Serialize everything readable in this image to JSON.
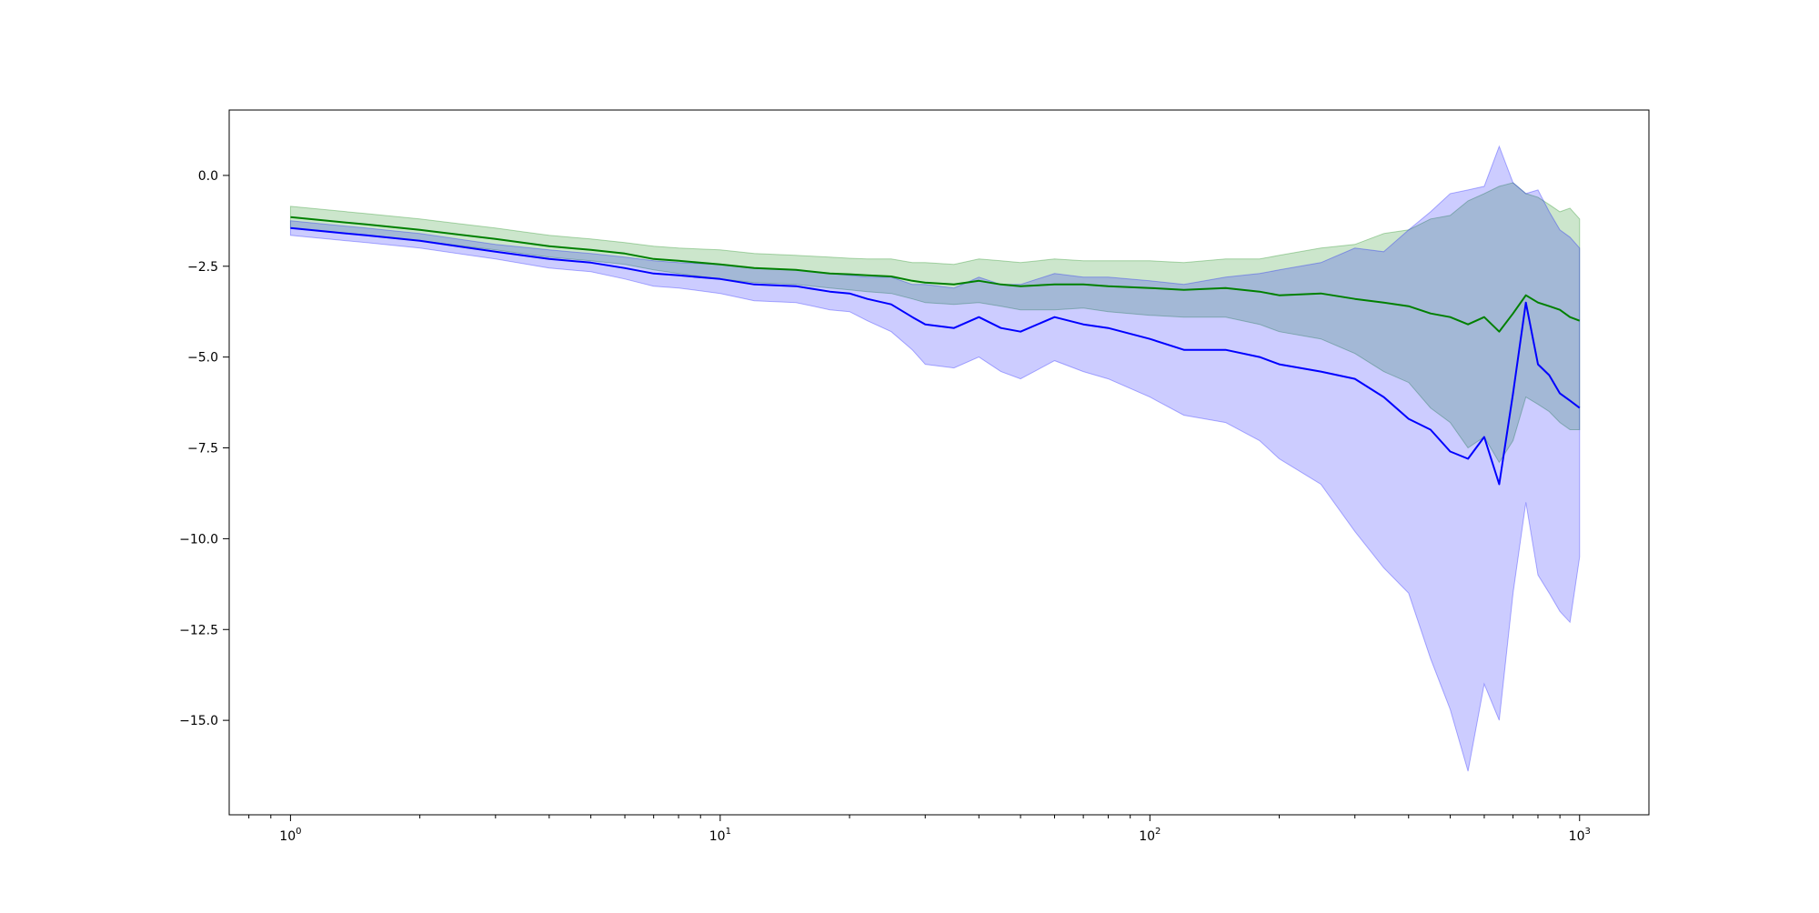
{
  "chart_data": {
    "type": "area",
    "title": "",
    "xlabel": "",
    "ylabel": "",
    "x_scale": "log",
    "xlim": [
      0.72,
      1450
    ],
    "ylim": [
      -17.6,
      1.8
    ],
    "x_ticks": [
      {
        "value": 1,
        "base": "10",
        "exp": "0"
      },
      {
        "value": 10,
        "base": "10",
        "exp": "1"
      },
      {
        "value": 100,
        "base": "10",
        "exp": "2"
      },
      {
        "value": 1000,
        "base": "10",
        "exp": "3"
      }
    ],
    "y_ticks": [
      {
        "value": 0,
        "label": "0.0"
      },
      {
        "value": -2.5,
        "label": "−2.5"
      },
      {
        "value": -5,
        "label": "−5.0"
      },
      {
        "value": -7.5,
        "label": "−7.5"
      },
      {
        "value": -10,
        "label": "−10.0"
      },
      {
        "value": -12.5,
        "label": "−12.5"
      },
      {
        "value": -15,
        "label": "−15.0"
      }
    ],
    "grid": false,
    "legend": "none",
    "series": [
      {
        "color": "#008000",
        "band_color": "#008000",
        "x": [
          1,
          1.5,
          2,
          3,
          4,
          5,
          6,
          7,
          8,
          10,
          12,
          15,
          18,
          20,
          22,
          25,
          28,
          30,
          35,
          40,
          45,
          50,
          60,
          70,
          80,
          100,
          120,
          150,
          180,
          200,
          250,
          300,
          350,
          400,
          450,
          500,
          550,
          600,
          650,
          700,
          750,
          800,
          850,
          900,
          950,
          1000
        ],
        "mean": [
          -1.15,
          -1.35,
          -1.5,
          -1.75,
          -1.95,
          -2.05,
          -2.15,
          -2.3,
          -2.35,
          -2.45,
          -2.55,
          -2.6,
          -2.7,
          -2.72,
          -2.75,
          -2.78,
          -2.9,
          -2.95,
          -3.0,
          -2.9,
          -3.0,
          -3.05,
          -3.0,
          -3.0,
          -3.05,
          -3.1,
          -3.15,
          -3.1,
          -3.2,
          -3.3,
          -3.25,
          -3.4,
          -3.5,
          -3.6,
          -3.8,
          -3.9,
          -4.1,
          -3.9,
          -4.3,
          -3.8,
          -3.3,
          -3.5,
          -3.6,
          -3.7,
          -3.9,
          -4.0
        ],
        "upper": [
          -0.85,
          -1.05,
          -1.2,
          -1.45,
          -1.65,
          -1.75,
          -1.85,
          -1.95,
          -2.0,
          -2.05,
          -2.15,
          -2.2,
          -2.25,
          -2.28,
          -2.3,
          -2.3,
          -2.4,
          -2.4,
          -2.45,
          -2.3,
          -2.35,
          -2.4,
          -2.3,
          -2.35,
          -2.35,
          -2.35,
          -2.4,
          -2.3,
          -2.3,
          -2.2,
          -2.0,
          -1.9,
          -1.6,
          -1.5,
          -1.2,
          -1.1,
          -0.7,
          -0.5,
          -0.3,
          -0.2,
          -0.5,
          -0.6,
          -0.8,
          -1.0,
          -0.9,
          -1.2
        ],
        "lower": [
          -1.45,
          -1.65,
          -1.8,
          -2.05,
          -2.25,
          -2.35,
          -2.45,
          -2.6,
          -2.7,
          -2.85,
          -2.95,
          -3.0,
          -3.1,
          -3.15,
          -3.2,
          -3.25,
          -3.4,
          -3.5,
          -3.55,
          -3.5,
          -3.6,
          -3.7,
          -3.7,
          -3.65,
          -3.75,
          -3.85,
          -3.9,
          -3.9,
          -4.1,
          -4.3,
          -4.5,
          -4.9,
          -5.4,
          -5.7,
          -6.4,
          -6.8,
          -7.5,
          -7.2,
          -7.9,
          -7.3,
          -6.1,
          -6.3,
          -6.5,
          -6.8,
          -7.0,
          -7.0
        ]
      },
      {
        "color": "#0000ff",
        "band_color": "#0000ff",
        "x": [
          1,
          1.5,
          2,
          3,
          4,
          5,
          6,
          7,
          8,
          10,
          12,
          15,
          18,
          20,
          22,
          25,
          28,
          30,
          35,
          40,
          45,
          50,
          60,
          70,
          80,
          100,
          120,
          150,
          180,
          200,
          250,
          300,
          350,
          400,
          450,
          500,
          550,
          600,
          650,
          700,
          750,
          800,
          850,
          900,
          950,
          1000
        ],
        "mean": [
          -1.45,
          -1.65,
          -1.8,
          -2.1,
          -2.3,
          -2.4,
          -2.55,
          -2.7,
          -2.75,
          -2.85,
          -3.0,
          -3.05,
          -3.2,
          -3.25,
          -3.4,
          -3.55,
          -3.9,
          -4.1,
          -4.2,
          -3.9,
          -4.2,
          -4.3,
          -3.9,
          -4.1,
          -4.2,
          -4.5,
          -4.8,
          -4.8,
          -5.0,
          -5.2,
          -5.4,
          -5.6,
          -6.1,
          -6.7,
          -7.0,
          -7.6,
          -7.8,
          -7.2,
          -8.5,
          -6.0,
          -3.5,
          -5.2,
          -5.5,
          -6.0,
          -6.2,
          -6.4
        ],
        "upper": [
          -1.25,
          -1.45,
          -1.6,
          -1.9,
          -2.05,
          -2.15,
          -2.25,
          -2.35,
          -2.4,
          -2.45,
          -2.55,
          -2.6,
          -2.7,
          -2.75,
          -2.8,
          -2.8,
          -3.0,
          -3.0,
          -3.1,
          -2.8,
          -3.0,
          -3.0,
          -2.7,
          -2.8,
          -2.8,
          -2.9,
          -3.0,
          -2.8,
          -2.7,
          -2.6,
          -2.4,
          -2.0,
          -2.1,
          -1.5,
          -1.0,
          -0.5,
          -0.4,
          -0.3,
          0.8,
          -0.2,
          -0.5,
          -0.4,
          -1.0,
          -1.5,
          -1.7,
          -2.0
        ],
        "lower": [
          -1.65,
          -1.85,
          -2.0,
          -2.3,
          -2.55,
          -2.65,
          -2.85,
          -3.05,
          -3.1,
          -3.25,
          -3.45,
          -3.5,
          -3.7,
          -3.75,
          -4.0,
          -4.3,
          -4.8,
          -5.2,
          -5.3,
          -5.0,
          -5.4,
          -5.6,
          -5.1,
          -5.4,
          -5.6,
          -6.1,
          -6.6,
          -6.8,
          -7.3,
          -7.8,
          -8.5,
          -9.8,
          -10.8,
          -11.5,
          -13.3,
          -14.7,
          -16.4,
          -14.0,
          -15.0,
          -11.5,
          -9.0,
          -11.0,
          -11.5,
          -12.0,
          -12.3,
          -10.5
        ]
      }
    ]
  }
}
